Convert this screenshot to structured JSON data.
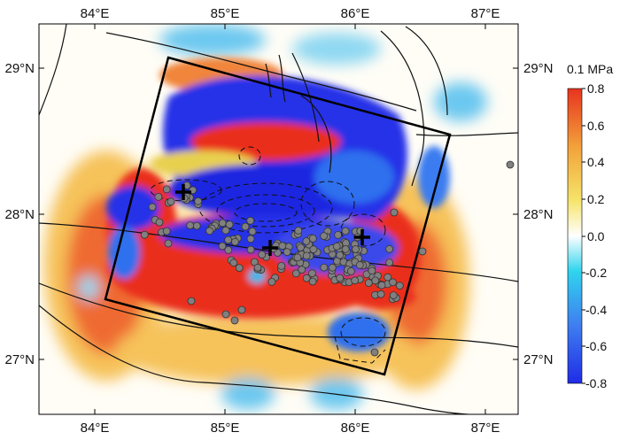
{
  "map": {
    "lon_ticks": [
      "84°E",
      "85°E",
      "86°E",
      "87°E"
    ],
    "lat_ticks": [
      "29°N",
      "28°N",
      "27°N"
    ],
    "colorbar": {
      "unit": "0.1 MPa",
      "ticks": [
        "0.8",
        "0.6",
        "0.4",
        "0.2",
        "0.0",
        "-0.2",
        "-0.4",
        "-0.6",
        "-0.8"
      ],
      "range": [
        -0.8,
        0.8
      ],
      "colors": [
        "#1f2ce6",
        "#3f7ff0",
        "#2fd4ee",
        "#ffffff",
        "#f5e46a",
        "#f2a33a",
        "#e8331e"
      ]
    },
    "markers": {
      "mainshock_symbols": [
        "plus",
        "plus",
        "plus"
      ],
      "aftershock_color": "#808080"
    }
  }
}
